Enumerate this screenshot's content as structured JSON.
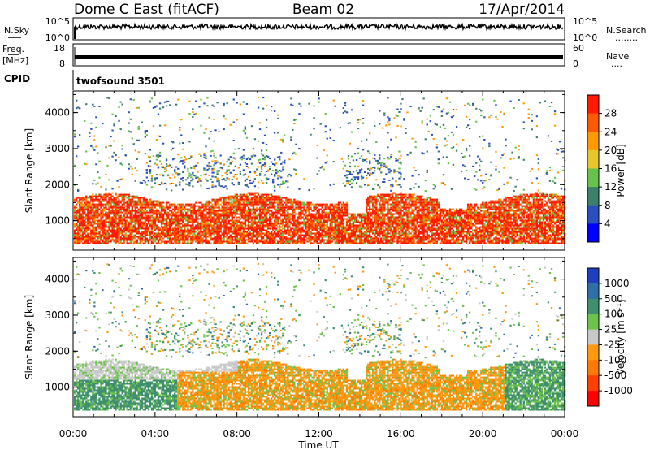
{
  "header": {
    "title": "Dome C East (fitACF)",
    "beam": "Beam 02",
    "date": "17/Apr/2014"
  },
  "nsky_panel": {
    "label": "N.Sky",
    "left_ticks": [
      "10^5",
      "10^0"
    ],
    "right_ticks": [
      "10^5",
      "10^0"
    ],
    "right_label": "N.Search",
    "right_marker": "........"
  },
  "freq_panel": {
    "label_line1": "Freq.",
    "label_line2": "[MHz]",
    "left_ticks": [
      "18",
      "8"
    ],
    "right_ticks": [
      "60",
      "0"
    ],
    "right_label": "Nave",
    "right_marker": "...."
  },
  "cpid": {
    "label": "CPID",
    "value": "twofsound 3501"
  },
  "chart_data": [
    {
      "type": "heatmap",
      "parameter": "power",
      "xlabel": "",
      "ylabel": "Slant Range [km]",
      "y_ticks": [
        1000,
        2000,
        3000,
        4000
      ],
      "ylim": [
        180,
        4600
      ],
      "colorbar": {
        "label": "Power [dB]",
        "ticks": [
          "4",
          "8",
          "12",
          "16",
          "20",
          "24",
          "28"
        ],
        "colors": [
          "#0000ff",
          "#2a4fbf",
          "#3c7f6a",
          "#66c24c",
          "#e8c828",
          "#ff9a00",
          "#ff5a00",
          "#ff1a00"
        ]
      }
    },
    {
      "type": "heatmap",
      "parameter": "velocity",
      "xlabel": "Time UT",
      "ylabel": "Slant Range [km]",
      "y_ticks": [
        1000,
        2000,
        3000,
        4000
      ],
      "ylim": [
        180,
        4600
      ],
      "x_ticks": [
        "00:00",
        "04:00",
        "08:00",
        "12:00",
        "16:00",
        "20:00",
        "00:00"
      ],
      "colorbar": {
        "label": "Velocity [m s⁻¹]",
        "ticks": [
          "1000",
          "500",
          "100",
          "25",
          "-25",
          "-100",
          "-500",
          "-1000"
        ],
        "colors": [
          "#1f3fbf",
          "#2f6fa8",
          "#3f8f6f",
          "#6cc24a",
          "#c8c8c8",
          "#ff9a10",
          "#ff7a00",
          "#ff4000",
          "#ff0000"
        ]
      }
    }
  ]
}
